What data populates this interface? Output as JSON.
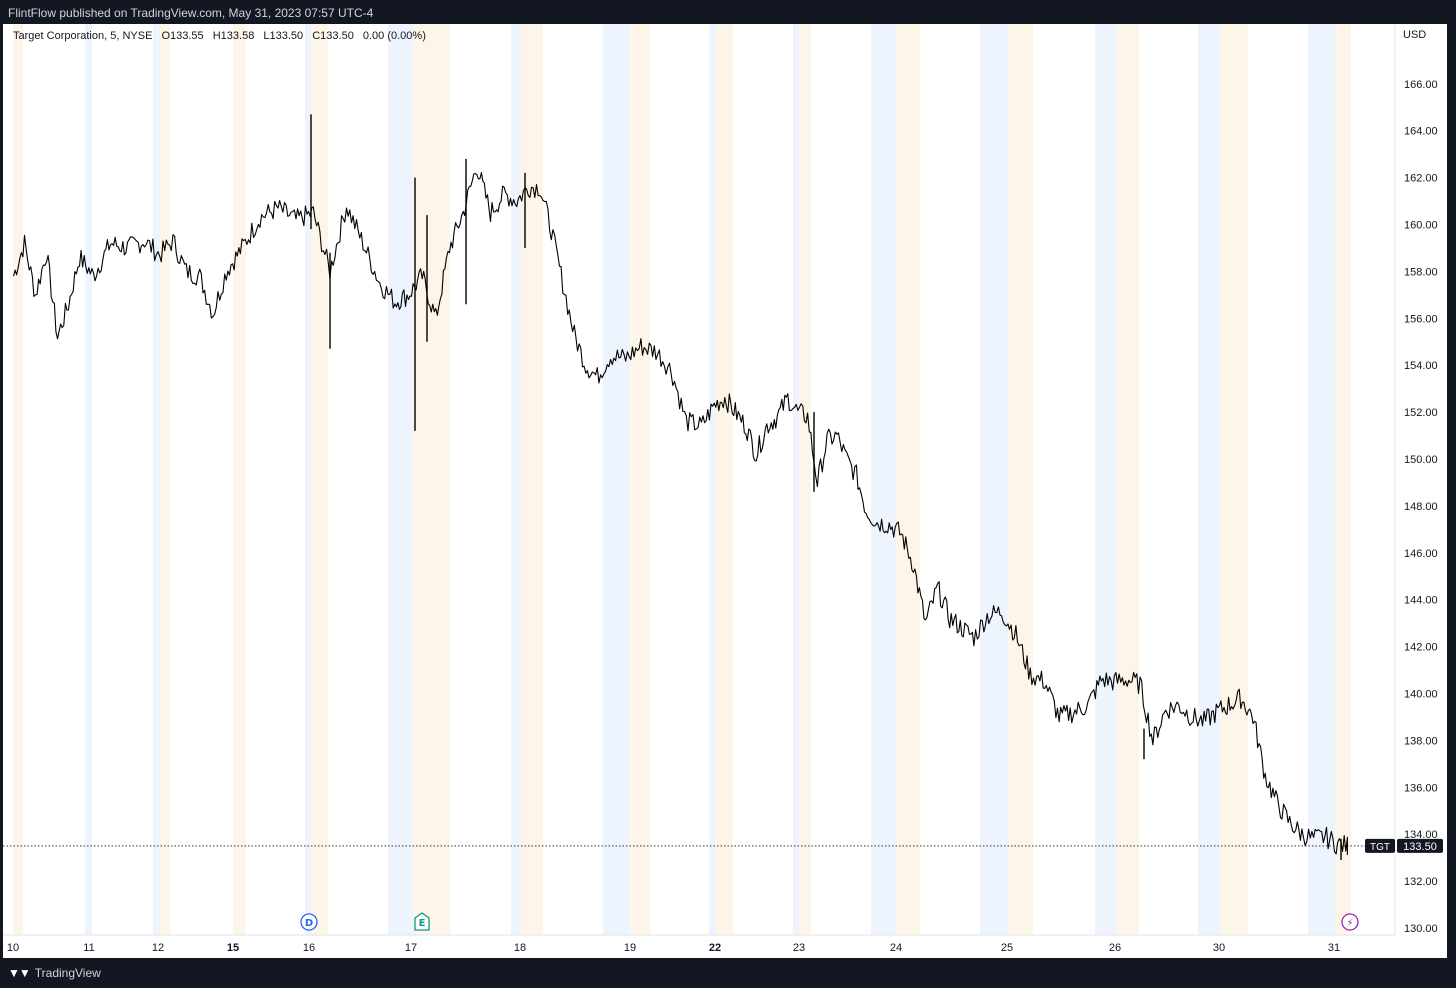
{
  "header": {
    "published": "FlintFlow published on TradingView.com, May 31, 2023 07:57 UTC-4"
  },
  "legend": {
    "symbol": "Target Corporation, 5, NYSE",
    "open": "O133.55",
    "high": "H133.58",
    "low": "L133.50",
    "close": "C133.50",
    "change": "0.00 (0.00%)"
  },
  "footer": {
    "brand": "TradingView",
    "brand_icon": "tradingview-logo-icon"
  },
  "colors": {
    "premarket": "#eef4fe",
    "afterhours": "#fdf5e7",
    "price": "#000000",
    "dividend": "#2962ff",
    "earnings": "#089981",
    "split": "#9c27b0"
  },
  "chart_data": {
    "type": "line",
    "title": "",
    "currency": "USD",
    "xlabel": "",
    "ylabel": "",
    "ylim": [
      130,
      167
    ],
    "yticks": [
      "130.00",
      "132.00",
      "134.00",
      "136.00",
      "138.00",
      "140.00",
      "142.00",
      "144.00",
      "146.00",
      "148.00",
      "150.00",
      "152.00",
      "154.00",
      "156.00",
      "158.00",
      "160.00",
      "162.00",
      "164.00",
      "166.00"
    ],
    "grid": false,
    "x_tick_labels": [
      "10",
      "11",
      "12",
      "15",
      "16",
      "17",
      "18",
      "19",
      "22",
      "23",
      "24",
      "25",
      "26",
      "30",
      "31"
    ],
    "bold_ticks": [
      "15",
      "22"
    ],
    "series": [
      {
        "symbol": "TGT",
        "interval_minutes": 5,
        "path_points": [
          [
            "May 10",
            157.8
          ],
          [
            "May 10",
            159.2
          ],
          [
            "May 10",
            157.0
          ],
          [
            "May 10",
            158.8
          ],
          [
            "May 10",
            155.2
          ],
          [
            "May 10",
            156.6
          ],
          [
            "May 10",
            158.6
          ],
          [
            "May 11",
            157.8
          ],
          [
            "May 11",
            159.2
          ],
          [
            "May 11",
            159.0
          ],
          [
            "May 11",
            159.3
          ],
          [
            "May 12",
            158.7
          ],
          [
            "May 12",
            159.3
          ],
          [
            "May 12",
            158.0
          ],
          [
            "May 12",
            157.8
          ],
          [
            "May 12",
            156.2
          ],
          [
            "May 12",
            158.0
          ],
          [
            "May 15",
            159.0
          ],
          [
            "May 15",
            160.3
          ],
          [
            "May 15",
            160.7
          ],
          [
            "May 15",
            160.2
          ],
          [
            "May 16",
            160.5
          ],
          [
            "May 16",
            158.0
          ],
          [
            "May 16",
            160.8
          ],
          [
            "May 16",
            159.2
          ],
          [
            "May 16",
            157.5
          ],
          [
            "May 17",
            156.7
          ],
          [
            "May 17",
            157.0
          ],
          [
            "May 17",
            157.8
          ],
          [
            "May 17",
            156.0
          ],
          [
            "May 17",
            159.0
          ],
          [
            "May 17",
            160.5
          ],
          [
            "May 17",
            162.5
          ],
          [
            "May 17",
            160.5
          ],
          [
            "May 17",
            161.3
          ],
          [
            "May 18",
            161.0
          ],
          [
            "May 18",
            161.6
          ],
          [
            "May 18",
            161.6
          ],
          [
            "May 18",
            159.8
          ],
          [
            "May 18",
            157.5
          ],
          [
            "May 18",
            155.3
          ],
          [
            "May 18",
            154.0
          ],
          [
            "May 18",
            153.5
          ],
          [
            "May 19",
            154.4
          ],
          [
            "May 19",
            154.3
          ],
          [
            "May 19",
            154.8
          ],
          [
            "May 19",
            154.6
          ],
          [
            "May 19",
            153.8
          ],
          [
            "May 19",
            151.6
          ],
          [
            "May 19",
            151.4
          ],
          [
            "May 22",
            152.3
          ],
          [
            "May 22",
            152.6
          ],
          [
            "May 22",
            152.0
          ],
          [
            "May 22",
            151.4
          ],
          [
            "May 22",
            150.2
          ],
          [
            "May 22",
            151.4
          ],
          [
            "May 22",
            151.8
          ],
          [
            "May 22",
            152.6
          ],
          [
            "May 23",
            152.0
          ],
          [
            "May 23",
            151.8
          ],
          [
            "May 23",
            149.0
          ],
          [
            "May 23",
            150.8
          ],
          [
            "May 23",
            151.0
          ],
          [
            "May 23",
            150.0
          ],
          [
            "May 23",
            149.3
          ],
          [
            "May 23",
            147.8
          ],
          [
            "May 24",
            147.3
          ],
          [
            "May 24",
            147.2
          ],
          [
            "May 24",
            146.8
          ],
          [
            "May 24",
            145.5
          ],
          [
            "May 24",
            143.0
          ],
          [
            "May 24",
            144.5
          ],
          [
            "May 24",
            143.2
          ],
          [
            "May 24",
            142.8
          ],
          [
            "May 24",
            142.4
          ],
          [
            "May 25",
            143.3
          ],
          [
            "May 25",
            143.5
          ],
          [
            "May 25",
            142.5
          ],
          [
            "May 25",
            140.8
          ],
          [
            "May 25",
            140.5
          ],
          [
            "May 25",
            139.0
          ],
          [
            "May 25",
            139.2
          ],
          [
            "May 25",
            139.5
          ],
          [
            "May 26",
            140.6
          ],
          [
            "May 26",
            140.5
          ],
          [
            "May 26",
            140.6
          ],
          [
            "May 26",
            140.4
          ],
          [
            "May 26",
            138.0
          ],
          [
            "May 26",
            139.3
          ],
          [
            "May 26",
            139.5
          ],
          [
            "May 26",
            139.0
          ],
          [
            "May 30",
            138.8
          ],
          [
            "May 30",
            139.2
          ],
          [
            "May 30",
            139.5
          ],
          [
            "May 30",
            139.8
          ],
          [
            "May 30",
            139.0
          ],
          [
            "May 30",
            136.5
          ],
          [
            "May 30",
            135.3
          ],
          [
            "May 30",
            134.5
          ],
          [
            "May 30",
            134.0
          ],
          [
            "May 31",
            133.8
          ],
          [
            "May 31",
            133.9
          ],
          [
            "May 31",
            133.6
          ],
          [
            "May 31",
            133.5
          ]
        ],
        "spikes": [
          [
            "May 16",
            164.7,
            159.8
          ],
          [
            "May 16",
            158.8,
            154.7
          ],
          [
            "May 17",
            162.0,
            151.2
          ],
          [
            "May 17",
            160.4,
            155.0
          ],
          [
            "May 17",
            162.8,
            156.6
          ],
          [
            "May 18",
            162.2,
            159.0
          ],
          [
            "May 23",
            152.0,
            148.6
          ],
          [
            "May 26",
            138.5,
            137.2
          ],
          [
            "May 31",
            133.8,
            132.9
          ]
        ]
      }
    ],
    "last_price": {
      "symbol_label": "TGT",
      "value": 133.5,
      "value_label": "133.50"
    },
    "sessions": [
      {
        "label": "10",
        "pre": null,
        "post": [
          10,
          20
        ]
      },
      {
        "label": "11",
        "pre": [
          82,
          89
        ],
        "post": null
      },
      {
        "label": "12",
        "pre": [
          150,
          157
        ],
        "post": [
          157,
          167
        ]
      },
      {
        "label": "15",
        "pre": null,
        "post": [
          230,
          243
        ]
      },
      {
        "label": "16",
        "pre": [
          302,
          308
        ],
        "post": [
          308,
          325
        ]
      },
      {
        "label": "17",
        "pre": [
          385,
          410
        ],
        "post": [
          410,
          447
        ]
      },
      {
        "label": "18",
        "pre": [
          508,
          518
        ],
        "post": [
          518,
          540
        ]
      },
      {
        "label": "19",
        "pre": [
          600,
          627
        ],
        "post": [
          627,
          647
        ]
      },
      {
        "label": "22",
        "pre": [
          706,
          713
        ],
        "post": [
          713,
          730
        ]
      },
      {
        "label": "23",
        "pre": [
          790,
          796
        ],
        "post": [
          796,
          808
        ]
      },
      {
        "label": "24",
        "pre": [
          868,
          893
        ],
        "post": [
          893,
          917
        ]
      },
      {
        "label": "25",
        "pre": [
          977,
          1005
        ],
        "post": [
          1005,
          1030
        ]
      },
      {
        "label": "26",
        "pre": [
          1092,
          1114
        ],
        "post": [
          1114,
          1136
        ]
      },
      {
        "label": "30",
        "pre": [
          1195,
          1217
        ],
        "post": [
          1217,
          1245
        ]
      },
      {
        "label": "31",
        "pre": [
          1305,
          1332
        ],
        "post": [
          1332,
          1348
        ]
      }
    ],
    "markers": [
      {
        "type": "dividend",
        "letter": "D",
        "date": "May 16"
      },
      {
        "type": "earnings",
        "letter": "E",
        "date": "May 17"
      },
      {
        "type": "split",
        "letter": "⚡",
        "date": "May 31"
      }
    ]
  }
}
